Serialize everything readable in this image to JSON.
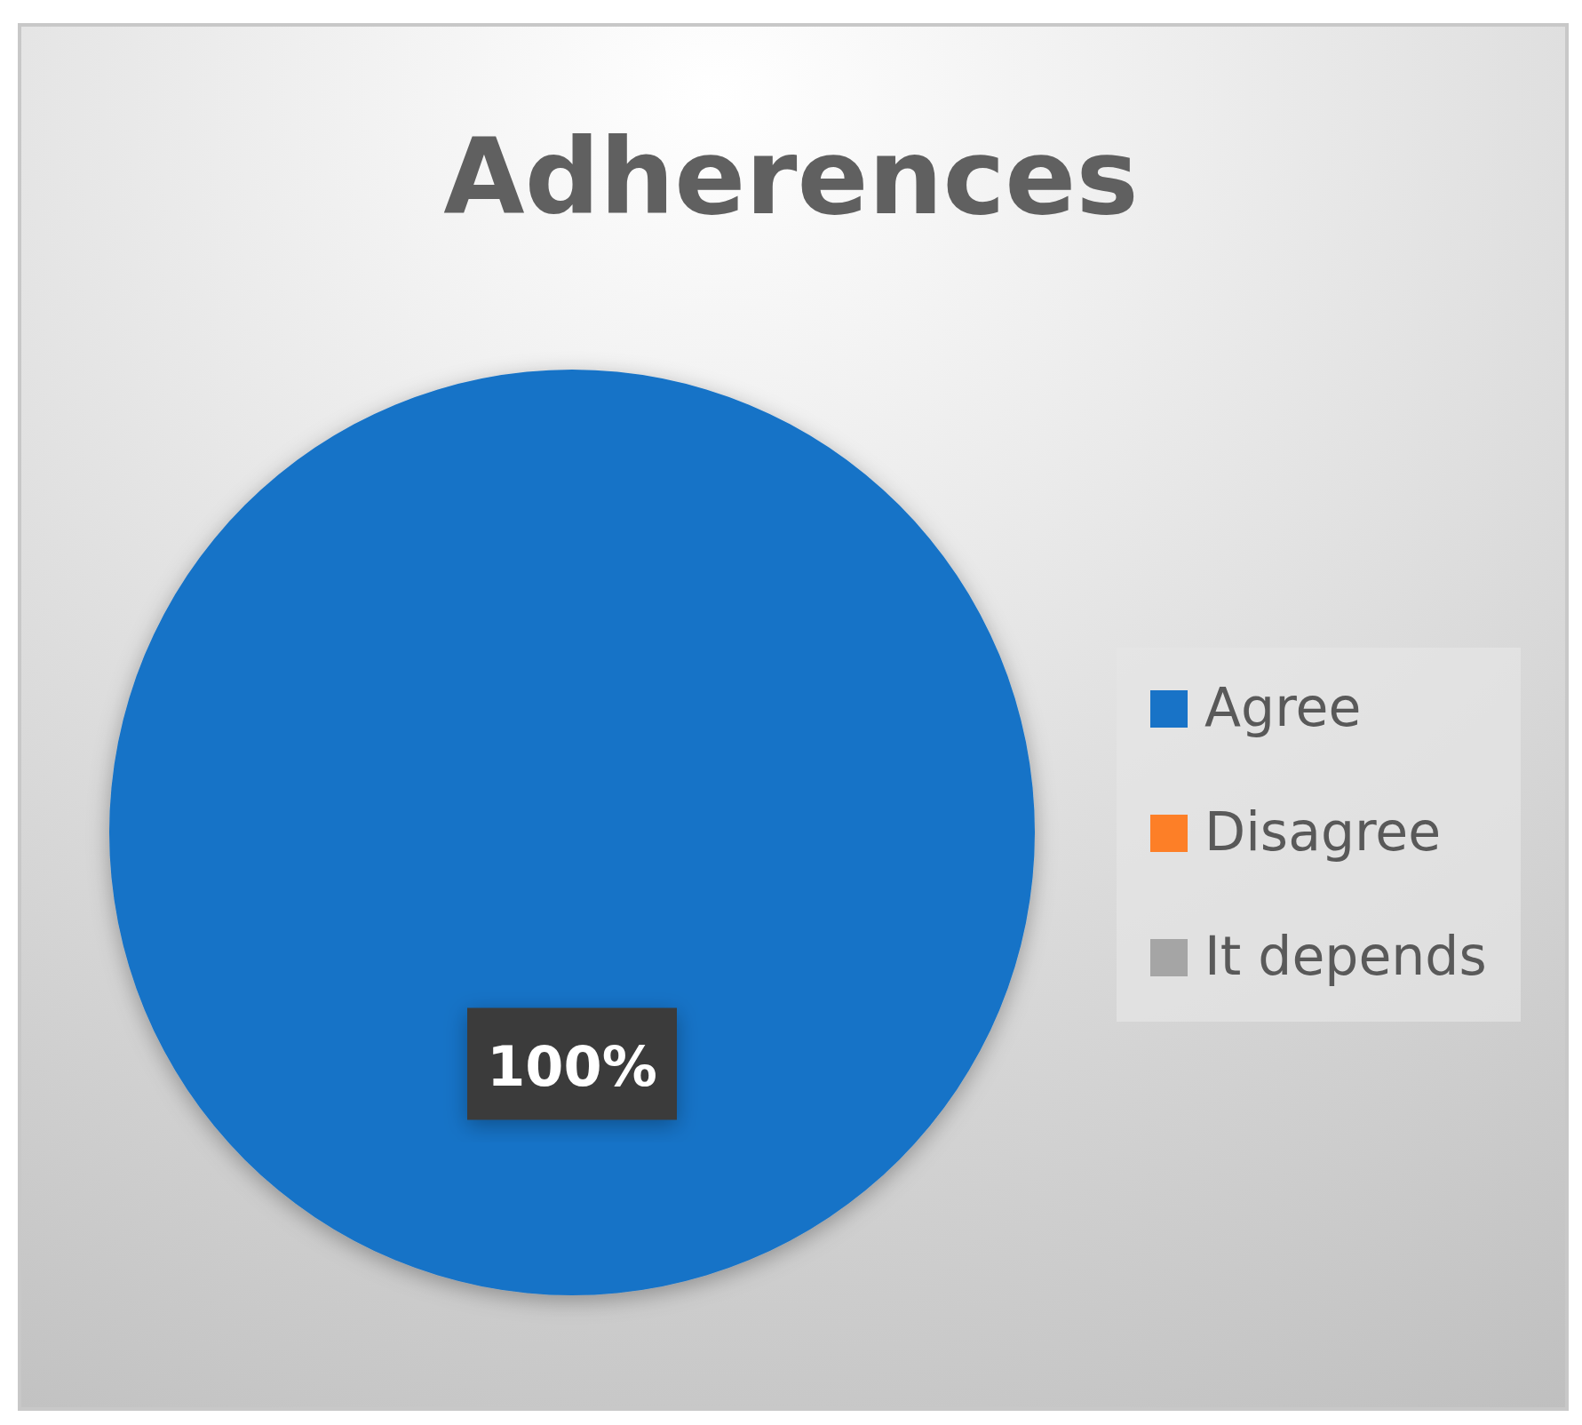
{
  "chart_data": {
    "type": "pie",
    "title": "Adherences",
    "categories": [
      "Agree",
      "Disagree",
      "It depends"
    ],
    "values": [
      100,
      0,
      0
    ],
    "colors": [
      "#1873c7",
      "#fd7f27",
      "#a5a5a5"
    ],
    "value_labels": [
      "100%",
      null,
      null
    ],
    "legend": "right"
  }
}
